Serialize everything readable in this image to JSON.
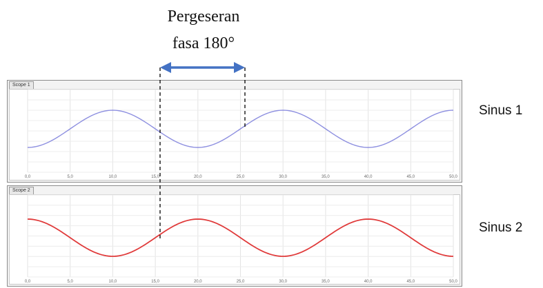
{
  "annotation": {
    "line1": "Pergeseran",
    "line2": "fasa 180°"
  },
  "labels": [
    "Sinus 1",
    "Sinus 2"
  ],
  "colors": {
    "arrow": "#4472c4",
    "sine1": "#8d8fe0",
    "sine2": "#e03a3a",
    "dashed": "#000000"
  },
  "chart_data": [
    {
      "type": "line",
      "panel_tab": "Scope 1",
      "series": [
        {
          "name": "Sinus 1",
          "color": "#8d8fe0"
        }
      ],
      "x_ticks": [
        "0,0",
        "5,0",
        "10,0",
        "15,0",
        "20,0",
        "25,0",
        "30,0",
        "35,0",
        "40,0",
        "45,0",
        "50,0"
      ],
      "xlim": [
        0,
        50
      ],
      "wave": {
        "amplitude": 1,
        "period": 20,
        "peak_at": 10,
        "trough_at": 20
      },
      "grid": true
    },
    {
      "type": "line",
      "panel_tab": "Scope 2",
      "series": [
        {
          "name": "Sinus 2",
          "color": "#e03a3a"
        }
      ],
      "x_ticks": [
        "0,0",
        "5,0",
        "10,0",
        "15,0",
        "20,0",
        "25,0",
        "30,0",
        "35,0",
        "40,0",
        "45,0",
        "50,0"
      ],
      "xlim": [
        0,
        50
      ],
      "wave": {
        "amplitude": 1,
        "period": 20,
        "peak_at": 0,
        "trough_at": 10
      },
      "grid": true
    }
  ]
}
